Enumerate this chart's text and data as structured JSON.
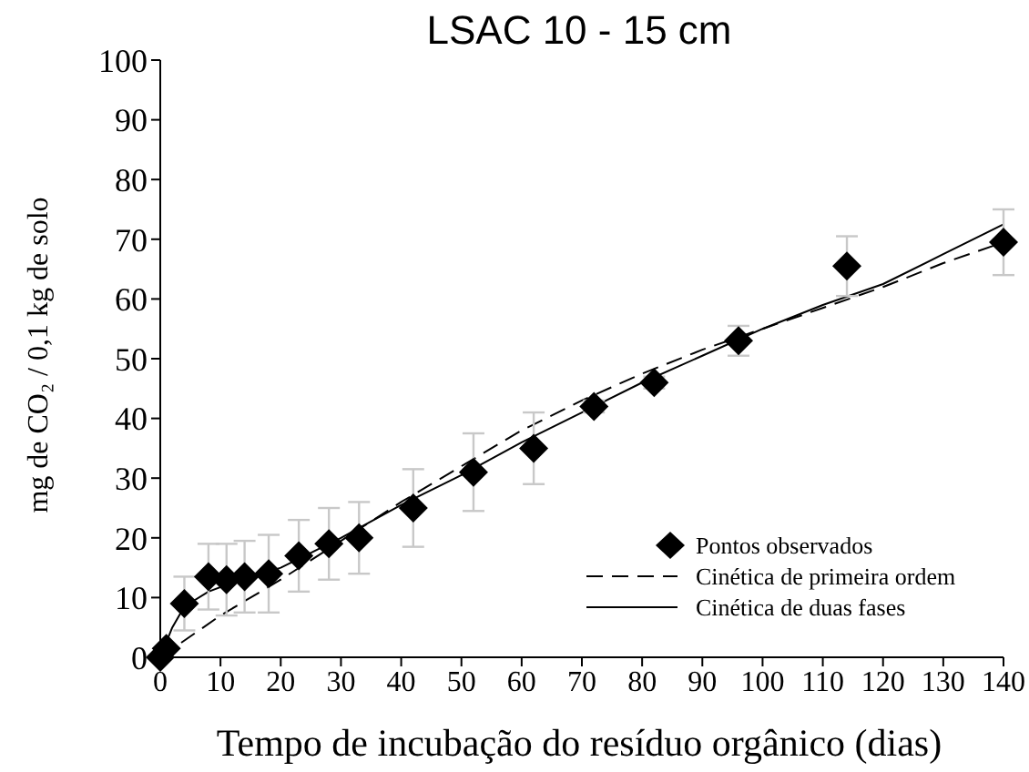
{
  "chart_data": {
    "type": "scatter",
    "title": "LSAC 10 - 15 cm",
    "xlabel": "Tempo de incubação do resíduo orgânico (dias)",
    "ylabel": "mg de CO₂ / 0,1 kg de solo",
    "xlim": [
      0,
      140
    ],
    "xticks": [
      0,
      10,
      20,
      30,
      40,
      50,
      60,
      70,
      80,
      90,
      100,
      110,
      120,
      130,
      140
    ],
    "ylim": [
      0,
      100
    ],
    "yticks": [
      0,
      10,
      20,
      30,
      40,
      50,
      60,
      70,
      80,
      90,
      100
    ],
    "grid": false,
    "legend": "bottom right",
    "series": [
      {
        "name": "Pontos observados",
        "marker": "diamond",
        "color": "#000000",
        "x": [
          0,
          1,
          4,
          8,
          11,
          14,
          18,
          23,
          28,
          33,
          42,
          52,
          62,
          72,
          82,
          96,
          114,
          140
        ],
        "values": [
          0,
          1.5,
          9,
          13.5,
          13,
          13.5,
          14,
          17,
          19,
          20,
          25,
          31,
          35,
          42,
          46,
          53,
          65.5,
          69.5
        ],
        "errors": [
          null,
          null,
          4.5,
          5.5,
          6,
          6,
          6.5,
          6,
          6,
          6,
          6.5,
          6.5,
          6,
          1,
          1,
          2.5,
          5,
          5.5
        ]
      },
      {
        "name": "Cinética de primeira ordem",
        "type": "line",
        "marker": "none",
        "line_style": "dashed",
        "color": "#000000",
        "x": [
          0,
          10,
          20,
          30,
          40,
          50,
          60,
          70,
          80,
          90,
          100,
          110,
          120,
          130,
          140
        ],
        "values": [
          0,
          7,
          13,
          19.5,
          26,
          32,
          38,
          43,
          47.5,
          51.5,
          55,
          58.5,
          62,
          66,
          69.5
        ]
      },
      {
        "name": "Cinética de duas fases",
        "type": "line",
        "marker": "none",
        "line_style": "solid",
        "color": "#000000",
        "x": [
          0,
          2,
          4,
          8,
          12,
          20,
          30,
          40,
          50,
          60,
          70,
          80,
          90,
          100,
          110,
          120,
          130,
          140
        ],
        "values": [
          0,
          5,
          8.5,
          11,
          12.5,
          15,
          20,
          25.5,
          30.5,
          36,
          41,
          46,
          50.5,
          55,
          59,
          62.5,
          67.5,
          72.5
        ]
      }
    ]
  }
}
